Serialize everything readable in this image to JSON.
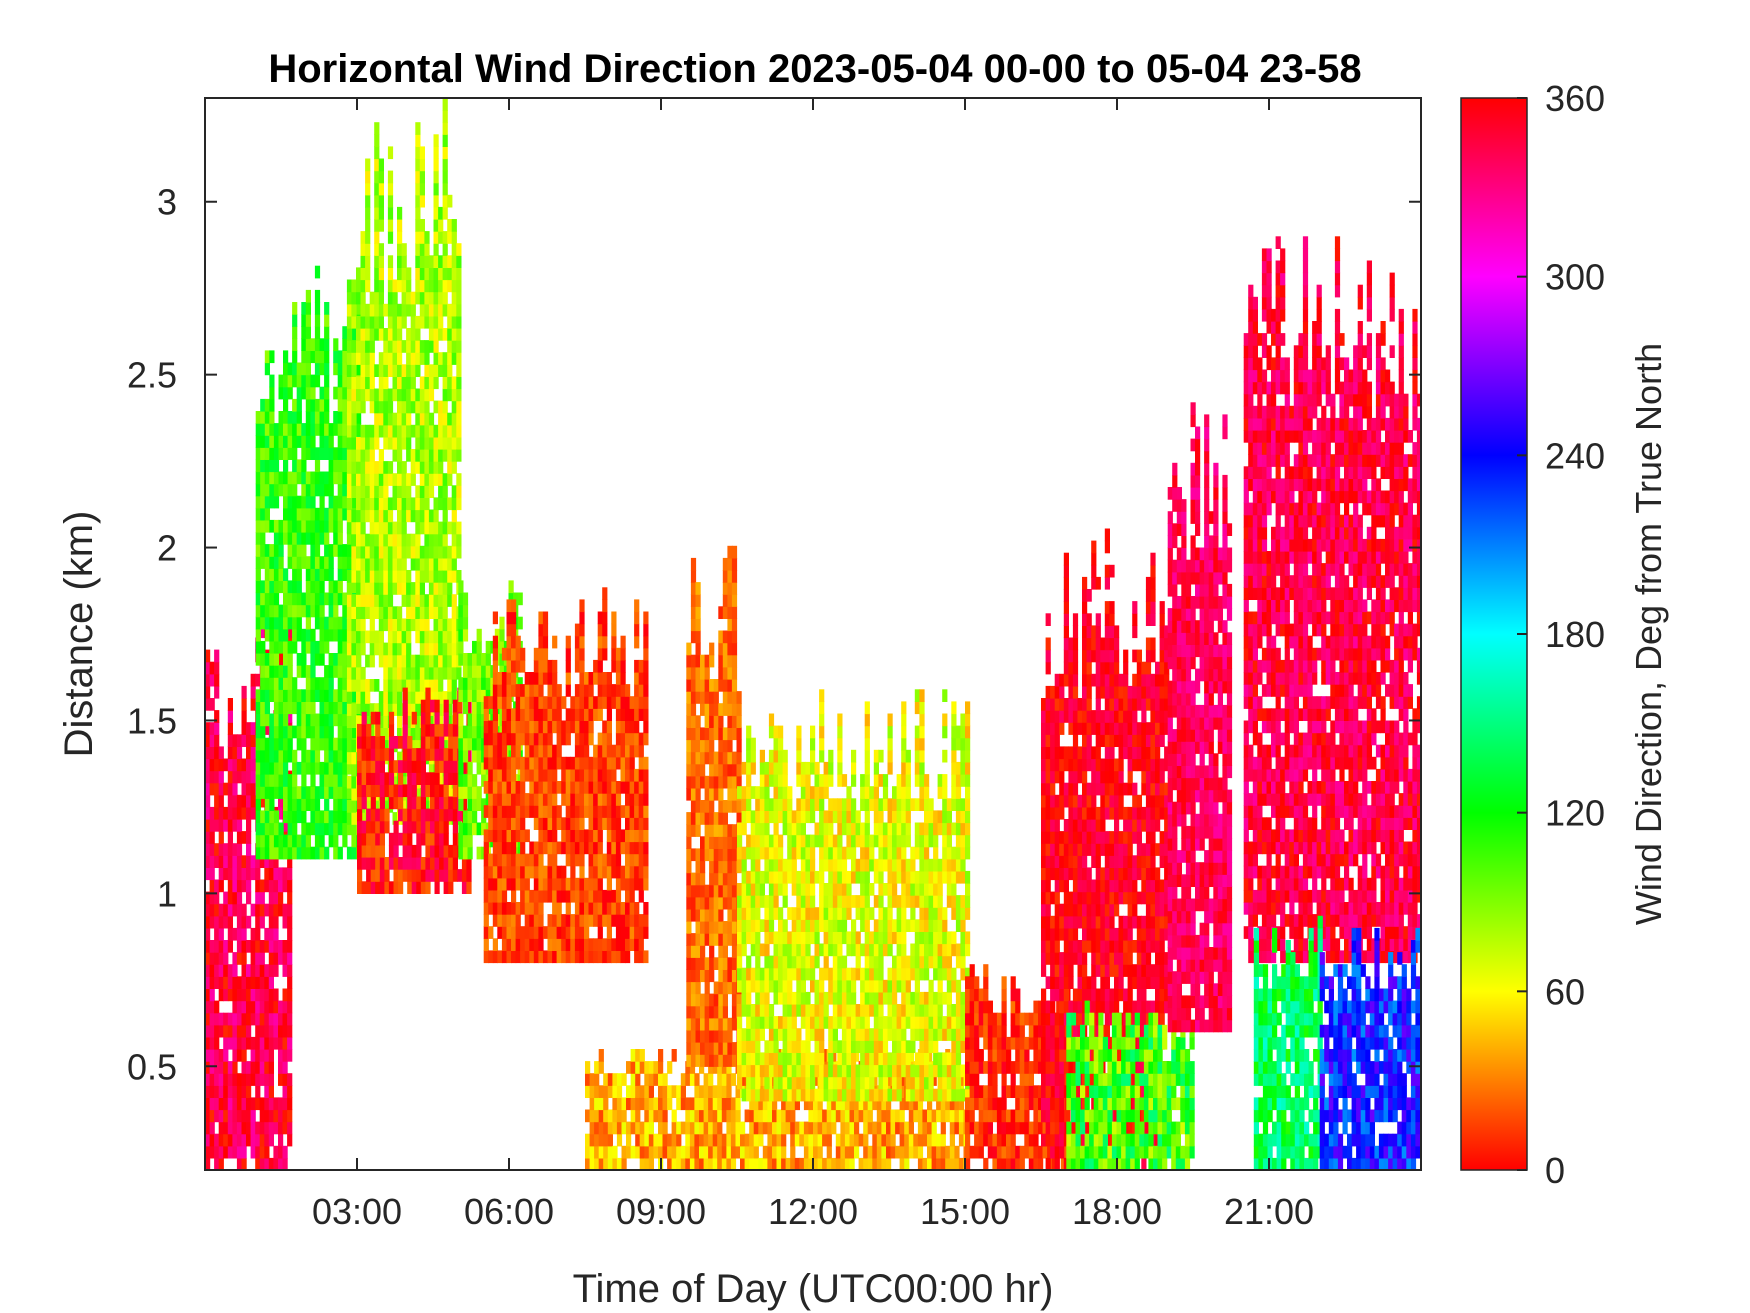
{
  "chart_data": {
    "type": "heatmap",
    "title": "Horizontal Wind Direction 2023-05-04 00-00 to 05-04 23-58",
    "xlabel": "Time of Day (UTC00:00 hr)",
    "ylabel": "Distance (km)",
    "colorbar_label": "Wind Direction, Deg from True North",
    "x_range_hours": [
      0,
      24
    ],
    "xlim_hours": [
      0,
      24
    ],
    "ylim": [
      0.2,
      3.3
    ],
    "clim": [
      0,
      360
    ],
    "colormap": "hsv",
    "grid": false,
    "x_ticks": [
      {
        "value": 3,
        "label": "03:00"
      },
      {
        "value": 6,
        "label": "06:00"
      },
      {
        "value": 9,
        "label": "09:00"
      },
      {
        "value": 12,
        "label": "12:00"
      },
      {
        "value": 15,
        "label": "15:00"
      },
      {
        "value": 18,
        "label": "18:00"
      },
      {
        "value": 21,
        "label": "21:00"
      }
    ],
    "y_ticks": [
      {
        "value": 0.5,
        "label": "0.5"
      },
      {
        "value": 1,
        "label": "1"
      },
      {
        "value": 1.5,
        "label": "1.5"
      },
      {
        "value": 2,
        "label": "2"
      },
      {
        "value": 2.5,
        "label": "2.5"
      },
      {
        "value": 3,
        "label": "3"
      }
    ],
    "colorbar_ticks": [
      {
        "value": 0,
        "label": "0"
      },
      {
        "value": 60,
        "label": "60"
      },
      {
        "value": 120,
        "label": "120"
      },
      {
        "value": 180,
        "label": "180"
      },
      {
        "value": 240,
        "label": "240"
      },
      {
        "value": 300,
        "label": "300"
      },
      {
        "value": 360,
        "label": "360"
      }
    ],
    "regions": [
      {
        "t": [
          0.0,
          1.7
        ],
        "h": [
          0.2,
          1.6
        ],
        "dir": 345,
        "spread": 25
      },
      {
        "t": [
          1.0,
          3.0
        ],
        "h": [
          1.1,
          2.6
        ],
        "dir": 110,
        "spread": 25
      },
      {
        "t": [
          2.8,
          5.0
        ],
        "h": [
          1.2,
          3.0
        ],
        "dir": 80,
        "spread": 25
      },
      {
        "t": [
          3.0,
          5.2
        ],
        "h": [
          1.0,
          1.5
        ],
        "dir": 0,
        "spread": 25
      },
      {
        "t": [
          5.0,
          6.2
        ],
        "h": [
          1.1,
          1.8
        ],
        "dir": 95,
        "spread": 25
      },
      {
        "t": [
          5.5,
          8.7
        ],
        "h": [
          0.8,
          1.7
        ],
        "dir": 15,
        "spread": 18
      },
      {
        "t": [
          7.5,
          15.0
        ],
        "h": [
          0.2,
          0.5
        ],
        "dir": 40,
        "spread": 25
      },
      {
        "t": [
          9.5,
          10.5
        ],
        "h": [
          0.5,
          1.8
        ],
        "dir": 25,
        "spread": 18
      },
      {
        "t": [
          10.5,
          15.0
        ],
        "h": [
          0.4,
          1.4
        ],
        "dir": 65,
        "spread": 25
      },
      {
        "t": [
          15.0,
          17.0
        ],
        "h": [
          0.2,
          0.7
        ],
        "dir": 10,
        "spread": 18
      },
      {
        "t": [
          16.5,
          19.0
        ],
        "h": [
          0.2,
          1.8
        ],
        "dir": 355,
        "spread": 18
      },
      {
        "t": [
          17.0,
          19.5
        ],
        "h": [
          0.2,
          0.6
        ],
        "dir": 110,
        "spread": 40
      },
      {
        "t": [
          19.0,
          20.2
        ],
        "h": [
          0.6,
          2.2
        ],
        "dir": 340,
        "spread": 18
      },
      {
        "t": [
          20.5,
          24.0
        ],
        "h": [
          0.8,
          2.6
        ],
        "dir": 345,
        "spread": 22
      },
      {
        "t": [
          20.7,
          22.0
        ],
        "h": [
          0.2,
          0.8
        ],
        "dir": 140,
        "spread": 30
      },
      {
        "t": [
          22.0,
          24.0
        ],
        "h": [
          0.2,
          0.8
        ],
        "dir": 235,
        "spread": 30
      }
    ]
  }
}
